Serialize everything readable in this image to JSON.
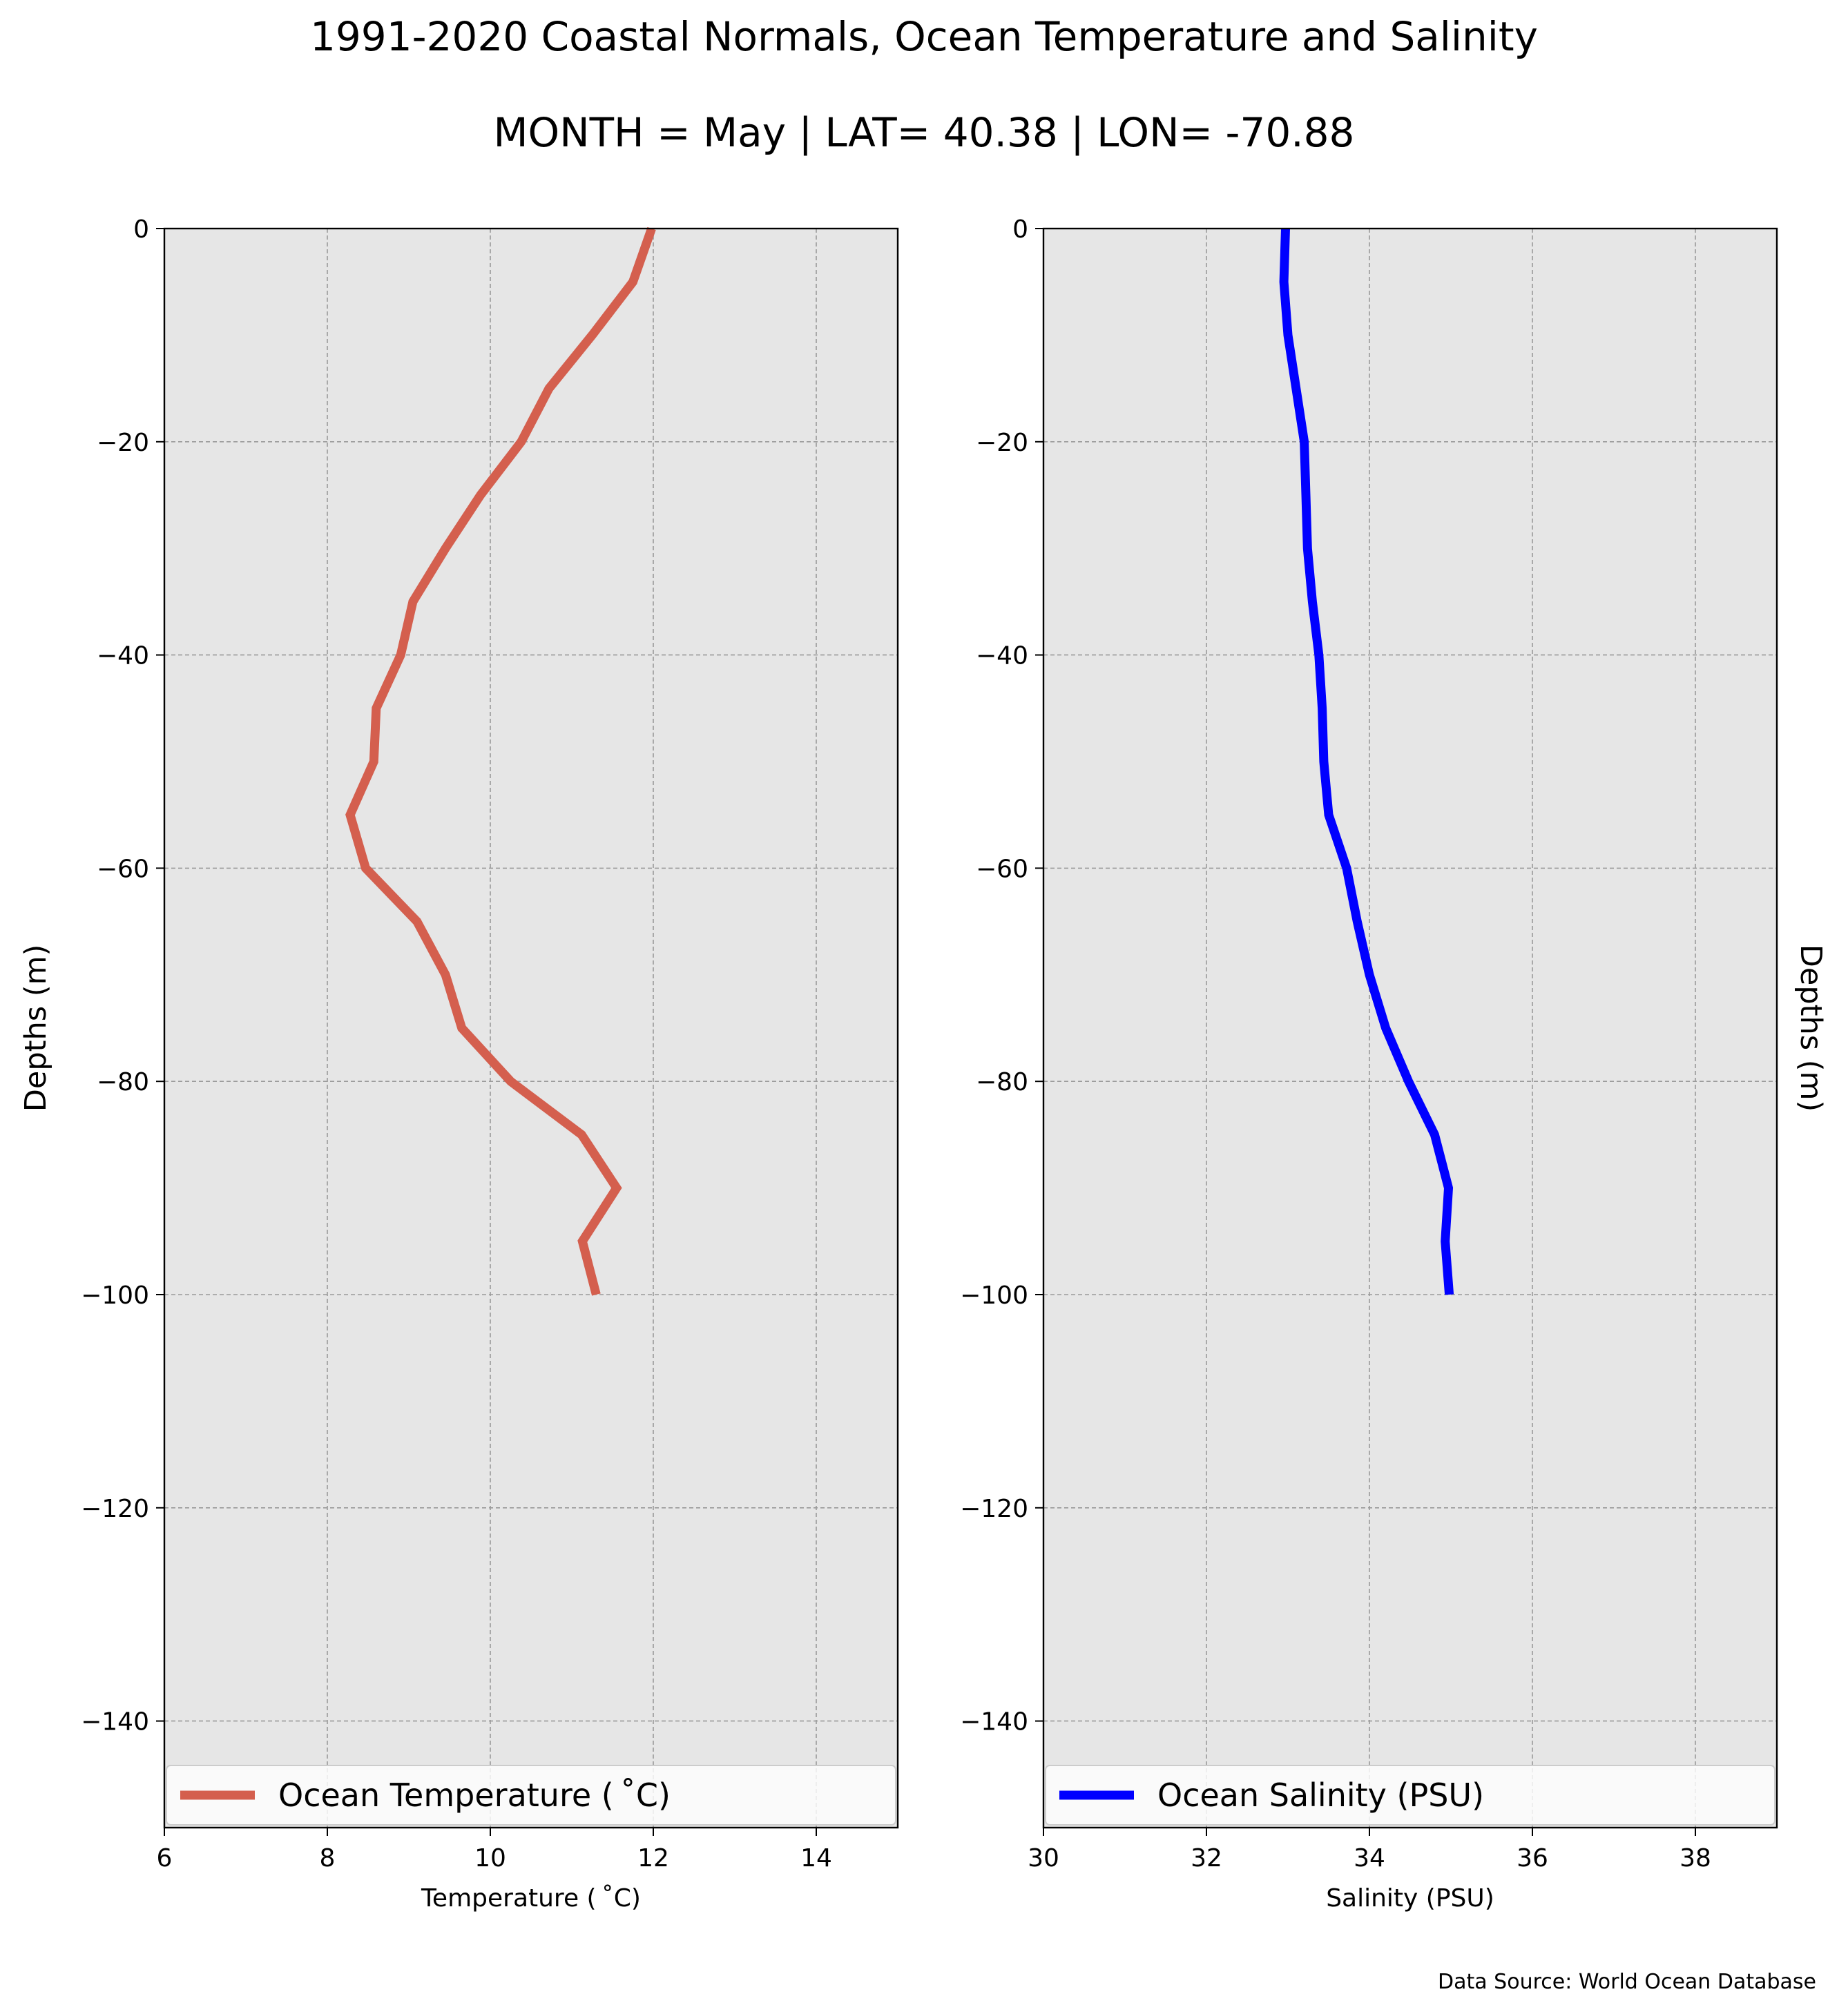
{
  "figure": {
    "title": "1991-2020 Coastal Normals, Ocean Temperature and Salinity",
    "subtitle": "MONTH = May | LAT= 40.38 | LON= -70.88",
    "source": "Data Source: World Ocean Database",
    "panel_background": "#e6e6e6",
    "grid_color": "#9a9a9a"
  },
  "chart_data": [
    {
      "type": "line",
      "xlabel": "Temperature ($^\\circ$C)",
      "xlabel_text": "Temperature ( ˚C)",
      "ylabel": "Depths (m)",
      "ylabel_side": "left",
      "xlim": [
        6,
        15
      ],
      "ylim": [
        -150,
        0
      ],
      "xticks": [
        6,
        8,
        10,
        12,
        14
      ],
      "xtick_labels": [
        "6",
        "8",
        "10",
        "12",
        "14"
      ],
      "yticks": [
        0,
        -20,
        -40,
        -60,
        -80,
        -100,
        -120,
        -140
      ],
      "ytick_labels": [
        "0",
        "−20",
        "−40",
        "−60",
        "−80",
        "−100",
        "−120",
        "−140"
      ],
      "grid": true,
      "legend_position": "bottom",
      "series": [
        {
          "name": "Ocean Temperature ( ˚C)",
          "color": "#d45f4e",
          "x": [
            11.98,
            11.75,
            11.25,
            10.72,
            10.38,
            9.88,
            9.45,
            9.05,
            8.9,
            8.6,
            8.57,
            8.28,
            8.47,
            9.1,
            9.45,
            9.65,
            10.25,
            11.12,
            11.55,
            11.13,
            11.3
          ],
          "y": [
            0,
            -5,
            -10,
            -15,
            -20,
            -25,
            -30,
            -35,
            -40,
            -45,
            -50,
            -55,
            -60,
            -65,
            -70,
            -75,
            -80,
            -85,
            -90,
            -95,
            -100
          ]
        }
      ]
    },
    {
      "type": "line",
      "xlabel": "Salinity (PSU)",
      "ylabel": "Depths (m)",
      "ylabel_side": "right",
      "xlim": [
        30,
        39
      ],
      "ylim": [
        -150,
        0
      ],
      "xticks": [
        30,
        32,
        34,
        36,
        38
      ],
      "xtick_labels": [
        "30",
        "32",
        "34",
        "36",
        "38"
      ],
      "yticks": [
        0,
        -20,
        -40,
        -60,
        -80,
        -100,
        -120,
        -140
      ],
      "ytick_labels": [
        "0",
        "−20",
        "−40",
        "−60",
        "−80",
        "−100",
        "−120",
        "−140"
      ],
      "grid": true,
      "legend_position": "bottom",
      "series": [
        {
          "name": "Ocean Salinity (PSU)",
          "color": "#0000ff",
          "x": [
            32.97,
            32.95,
            33.0,
            33.1,
            33.2,
            33.22,
            33.24,
            33.3,
            33.38,
            33.42,
            33.44,
            33.5,
            33.72,
            33.85,
            34.0,
            34.2,
            34.48,
            34.8,
            34.97,
            34.93,
            34.98
          ],
          "y": [
            0,
            -5,
            -10,
            -15,
            -20,
            -25,
            -30,
            -35,
            -40,
            -45,
            -50,
            -55,
            -60,
            -65,
            -70,
            -75,
            -80,
            -85,
            -90,
            -95,
            -100
          ]
        }
      ]
    }
  ]
}
